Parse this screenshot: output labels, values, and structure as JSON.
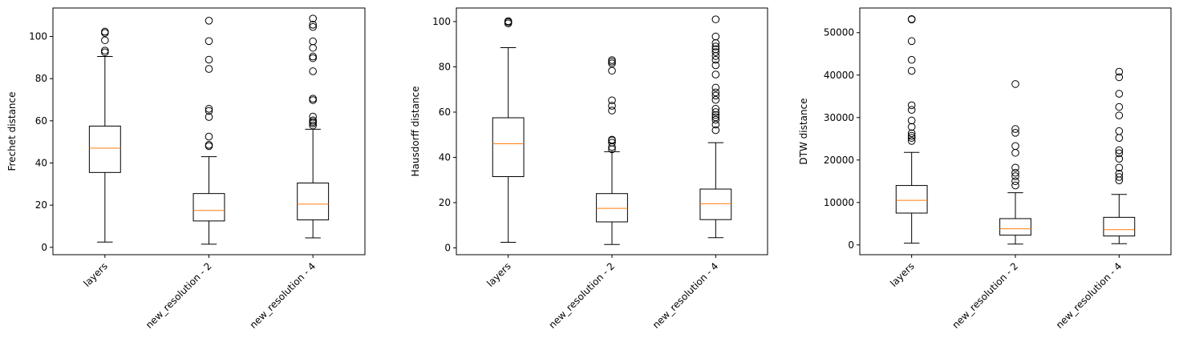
{
  "chart_data": [
    {
      "type": "boxplot",
      "ylabel": "Frechet distance",
      "ylim": [
        -3.5,
        113.5
      ],
      "yticks": [
        0,
        20,
        40,
        60,
        80,
        100
      ],
      "categories": [
        "layers",
        "new_resolution - 2",
        "new_resolution - 4"
      ],
      "boxes": [
        {
          "whisker_low": 2.5,
          "q1": 35.5,
          "median": 47,
          "q3": 57.5,
          "whisker_high": 90.5,
          "outliers": [
            92.5,
            93.3,
            98.2,
            101.7,
            102.3
          ]
        },
        {
          "whisker_low": 1.5,
          "q1": 12.5,
          "median": 17.5,
          "q3": 25.5,
          "whisker_high": 43,
          "outliers": [
            48,
            48.6,
            52.5,
            61.8,
            64.7,
            65.7,
            84.6,
            89,
            97.8,
            107.5
          ]
        },
        {
          "whisker_low": 4.5,
          "q1": 13,
          "median": 20.5,
          "q3": 30.5,
          "whisker_high": 56,
          "outliers": [
            57.8,
            58.8,
            59.5,
            60.2,
            62,
            69.8,
            70.5,
            83.5,
            89.7,
            90.5,
            94.6,
            97.7,
            104.5,
            105.6,
            108.5
          ]
        }
      ]
    },
    {
      "type": "boxplot",
      "ylabel": "Hausdorff distance",
      "ylim": [
        -3.0,
        106.0
      ],
      "yticks": [
        0,
        20,
        40,
        60,
        80,
        100
      ],
      "categories": [
        "layers",
        "new_resolution - 2",
        "new_resolution - 4"
      ],
      "boxes": [
        {
          "whisker_low": 2.5,
          "q1": 31.5,
          "median": 46,
          "q3": 57.5,
          "whisker_high": 88.5,
          "outliers": [
            99.2,
            99.8,
            100.2
          ]
        },
        {
          "whisker_low": 1.5,
          "q1": 11.5,
          "median": 17.5,
          "q3": 24,
          "whisker_high": 42.5,
          "outliers": [
            43.6,
            44.6,
            46.5,
            47.5,
            47.8,
            60.7,
            62.8,
            65.2,
            78.3,
            81.5,
            82.3,
            83
          ]
        },
        {
          "whisker_low": 4.5,
          "q1": 12.5,
          "median": 19.5,
          "q3": 26,
          "whisker_high": 46.5,
          "outliers": [
            52,
            54.5,
            56.6,
            57.7,
            58.7,
            60,
            61.5,
            65.4,
            67.3,
            68.7,
            70.8,
            76.6,
            80.7,
            83.1,
            84.8,
            86.5,
            87.8,
            89,
            90.5,
            93.4,
            101
          ]
        }
      ]
    },
    {
      "type": "boxplot",
      "ylabel": "DTW distance",
      "ylim": [
        -2300,
        55800
      ],
      "yticks": [
        0,
        10000,
        20000,
        30000,
        40000,
        50000
      ],
      "categories": [
        "layers",
        "new_resolution - 2",
        "new_resolution - 4"
      ],
      "boxes": [
        {
          "whisker_low": 400,
          "q1": 7500,
          "median": 10500,
          "q3": 14000,
          "whisker_high": 21800,
          "outliers": [
            24500,
            25200,
            25700,
            26300,
            27800,
            29300,
            31800,
            32900,
            41000,
            43600,
            48000,
            53100,
            53200
          ]
        },
        {
          "whisker_low": 200,
          "q1": 2300,
          "median": 3800,
          "q3": 6200,
          "whisker_high": 12300,
          "outliers": [
            14000,
            15000,
            16200,
            17000,
            18200,
            21700,
            23300,
            26400,
            27300,
            37900
          ]
        },
        {
          "whisker_low": 300,
          "q1": 2100,
          "median": 3600,
          "q3": 6500,
          "whisker_high": 11900,
          "outliers": [
            15200,
            16000,
            16800,
            18200,
            20300,
            21600,
            22300,
            25200,
            26800,
            30500,
            32500,
            35600,
            39500,
            40800
          ]
        }
      ]
    }
  ]
}
